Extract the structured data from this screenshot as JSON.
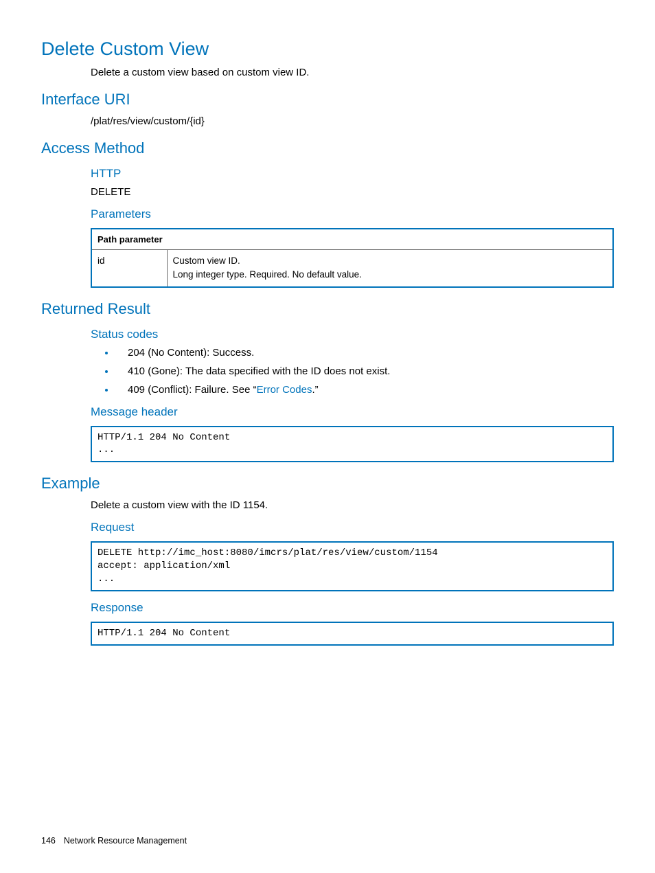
{
  "colors": {
    "accent": "#0073ba",
    "text": "#000000",
    "tableBorderInner": "#666666",
    "background": "#ffffff"
  },
  "typography": {
    "h1_size_pt": 20,
    "h2_size_pt": 16,
    "h3_size_pt": 13,
    "body_size_pt": 11,
    "code_font": "Courier New"
  },
  "h1": "Delete Custom View",
  "intro": "Delete a custom view based on custom view ID.",
  "sections": {
    "interfaceUri": {
      "heading": "Interface URI",
      "value": "/plat/res/view/custom/{id}"
    },
    "accessMethod": {
      "heading": "Access Method",
      "http": {
        "heading": "HTTP",
        "value": "DELETE"
      },
      "parameters": {
        "heading": "Parameters",
        "table": {
          "header": "Path parameter",
          "columns_widths": [
            "110px",
            "auto"
          ],
          "rows": [
            {
              "name": "id",
              "desc_line1": "Custom view ID.",
              "desc_line2": "Long integer type. Required. No default value."
            }
          ]
        }
      }
    },
    "returnedResult": {
      "heading": "Returned Result",
      "statusCodes": {
        "heading": "Status codes",
        "items": [
          {
            "text": "204 (No Content): Success."
          },
          {
            "text": "410 (Gone): The data specified with the ID does not exist."
          },
          {
            "prefix": "409 (Conflict): Failure. See “",
            "link": "Error Codes",
            "suffix": ".”"
          }
        ]
      },
      "messageHeader": {
        "heading": "Message header",
        "code": "HTTP/1.1 204 No Content\n..."
      }
    },
    "example": {
      "heading": "Example",
      "intro": "Delete a custom view with the ID 1154.",
      "request": {
        "heading": "Request",
        "code": "DELETE http://imc_host:8080/imcrs/plat/res/view/custom/1154\naccept: application/xml\n..."
      },
      "response": {
        "heading": "Response",
        "code": "HTTP/1.1 204 No Content"
      }
    }
  },
  "footer": {
    "page": "146",
    "chapter": "Network Resource Management"
  }
}
